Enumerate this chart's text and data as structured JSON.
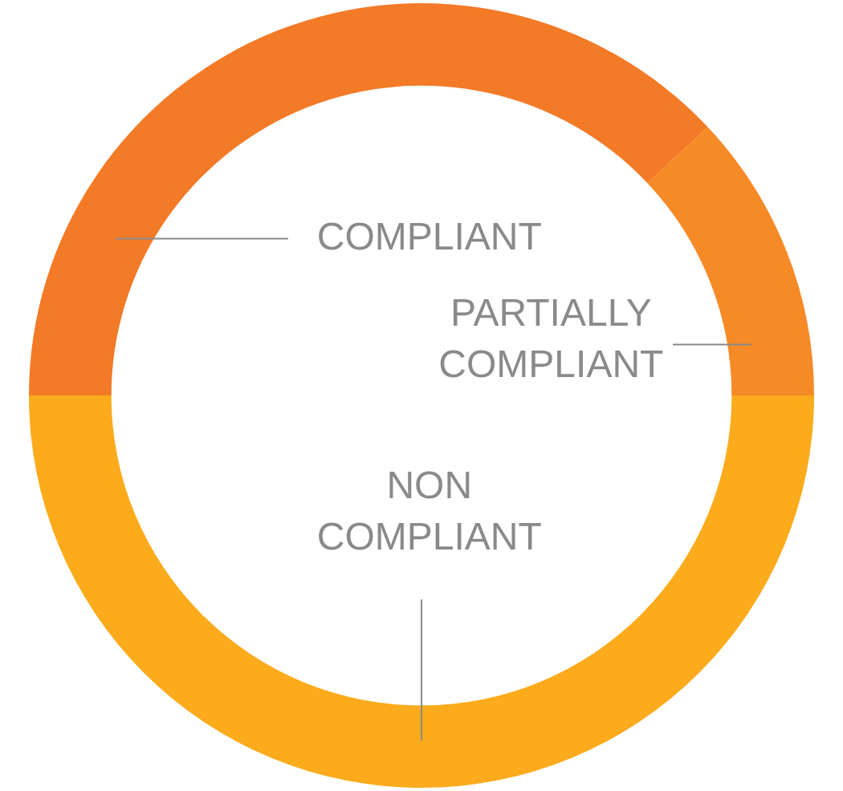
{
  "chart_data": {
    "type": "donut",
    "categories": [
      "COMPLIANT",
      "PARTIALLY COMPLIANT",
      "NON COMPLIANT"
    ],
    "values": [
      38,
      12,
      50
    ],
    "colors": [
      "#f37a27",
      "#f58a26",
      "#fbab1c"
    ],
    "legend": false
  }
}
